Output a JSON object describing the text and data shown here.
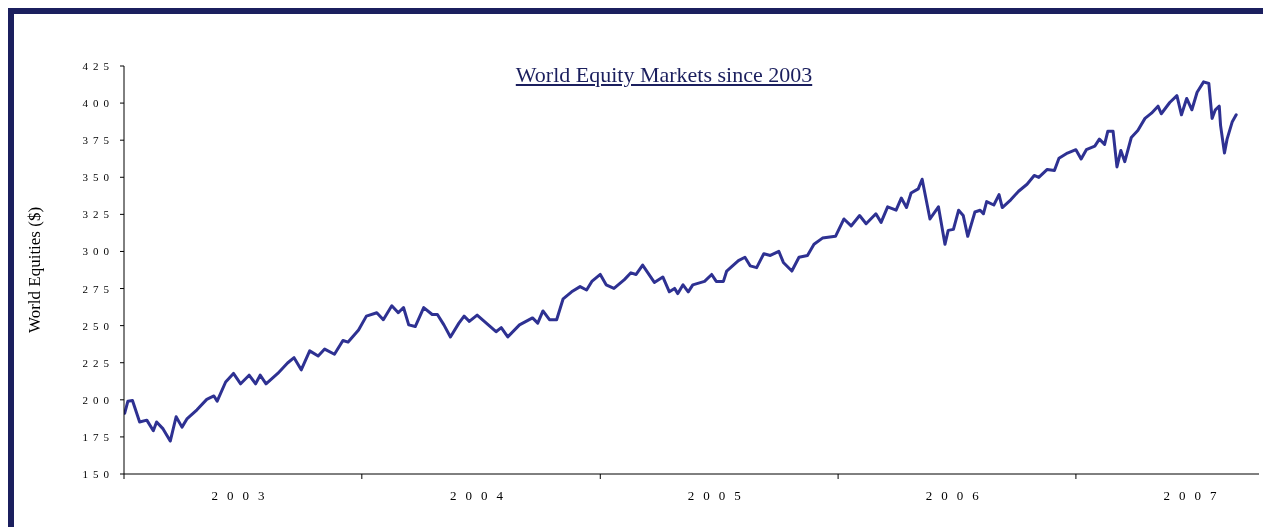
{
  "chart_data": {
    "type": "line",
    "title": "World Equity Markets since 2003",
    "ylabel": "World Equities ($)",
    "xlim": [
      "2003-01-01",
      "2007-10-09"
    ],
    "xticks": [
      {
        "value": "2003-01-01",
        "label": null
      },
      {
        "value": "2003-07-02",
        "label": "2003"
      },
      {
        "value": "2004-01-01",
        "label": null
      },
      {
        "value": "2004-07-02",
        "label": "2004"
      },
      {
        "value": "2005-01-01",
        "label": null
      },
      {
        "value": "2005-07-02",
        "label": "2005"
      },
      {
        "value": "2006-01-01",
        "label": null
      },
      {
        "value": "2006-07-02",
        "label": "2006"
      },
      {
        "value": "2007-01-01",
        "label": null
      },
      {
        "value": "2007-07-02",
        "label": "2007"
      }
    ],
    "ylim": [
      150,
      425
    ],
    "yticks": [
      150,
      175,
      200,
      225,
      250,
      275,
      300,
      325,
      350,
      375,
      400,
      425
    ],
    "line_style": "solid",
    "series": [
      {
        "color": "#2e3192",
        "x": [
          "2003-01-02",
          "2003-01-07",
          "2003-01-14",
          "2003-01-25",
          "2003-02-05",
          "2003-02-15",
          "2003-02-20",
          "2003-03-02",
          "2003-03-13",
          "2003-03-22",
          "2003-03-31",
          "2003-04-08",
          "2003-04-23",
          "2003-05-08",
          "2003-05-19",
          "2003-05-24",
          "2003-06-06",
          "2003-06-18",
          "2003-06-29",
          "2003-07-12",
          "2003-07-22",
          "2003-07-29",
          "2003-08-07",
          "2003-08-25",
          "2003-09-09",
          "2003-09-19",
          "2003-09-30",
          "2003-10-13",
          "2003-10-26",
          "2003-11-05",
          "2003-11-20",
          "2003-12-03",
          "2003-12-11",
          "2003-12-27",
          "2004-01-08",
          "2004-01-24",
          "2004-02-03",
          "2004-02-16",
          "2004-02-26",
          "2004-03-05",
          "2004-03-13",
          "2004-03-23",
          "2004-04-05",
          "2004-04-18",
          "2004-04-26",
          "2004-05-06",
          "2004-05-16",
          "2004-05-29",
          "2004-06-06",
          "2004-06-14",
          "2004-06-26",
          "2004-07-07",
          "2004-07-25",
          "2004-08-02",
          "2004-08-12",
          "2004-08-30",
          "2004-09-19",
          "2004-09-27",
          "2004-10-05",
          "2004-10-15",
          "2004-10-26",
          "2004-11-05",
          "2004-11-18",
          "2004-12-01",
          "2004-12-11",
          "2004-12-19",
          "2005-01-01",
          "2005-01-10",
          "2005-01-22",
          "2005-02-07",
          "2005-02-17",
          "2005-02-25",
          "2005-03-07",
          "2005-03-25",
          "2005-04-07",
          "2005-04-17",
          "2005-04-25",
          "2005-04-30",
          "2005-05-08",
          "2005-05-16",
          "2005-05-23",
          "2005-06-10",
          "2005-06-21",
          "2005-06-28",
          "2005-07-09",
          "2005-07-14",
          "2005-08-01",
          "2005-08-11",
          "2005-08-19",
          "2005-08-29",
          "2005-09-09",
          "2005-09-19",
          "2005-10-02",
          "2005-10-09",
          "2005-10-22",
          "2005-11-02",
          "2005-11-15",
          "2005-11-25",
          "2005-12-08",
          "2005-12-28",
          "2006-01-10",
          "2006-01-21",
          "2006-02-03",
          "2006-02-13",
          "2006-02-28",
          "2006-03-08",
          "2006-03-18",
          "2006-03-31",
          "2006-04-08",
          "2006-04-16",
          "2006-04-23",
          "2006-05-04",
          "2006-05-10",
          "2006-05-22",
          "2006-06-04",
          "2006-06-14",
          "2006-06-19",
          "2006-06-27",
          "2006-07-05",
          "2006-07-12",
          "2006-07-19",
          "2006-07-30",
          "2006-08-07",
          "2006-08-12",
          "2006-08-17",
          "2006-08-28",
          "2006-09-05",
          "2006-09-10",
          "2006-09-23",
          "2006-10-05",
          "2006-10-18",
          "2006-10-29",
          "2006-11-05",
          "2006-11-18",
          "2006-11-29",
          "2006-12-06",
          "2006-12-19",
          "2007-01-01",
          "2007-01-09",
          "2007-01-17",
          "2007-01-30",
          "2007-02-06",
          "2007-02-14",
          "2007-02-19",
          "2007-02-27",
          "2007-03-05",
          "2007-03-11",
          "2007-03-17",
          "2007-03-27",
          "2007-04-06",
          "2007-04-17",
          "2007-04-27",
          "2007-05-07",
          "2007-05-12",
          "2007-05-25",
          "2007-06-05",
          "2007-06-12",
          "2007-06-20",
          "2007-06-28",
          "2007-07-06",
          "2007-07-16",
          "2007-07-24",
          "2007-07-29",
          "2007-08-03",
          "2007-08-09",
          "2007-08-11",
          "2007-08-17",
          "2007-08-21",
          "2007-08-29",
          "2007-09-04"
        ],
        "values": [
          190.9,
          199.1,
          199.6,
          185.1,
          186.3,
          179.2,
          185.1,
          180.4,
          172.2,
          188.6,
          181.6,
          187.4,
          193.3,
          200.3,
          202.6,
          199.1,
          212.0,
          217.8,
          210.8,
          216.6,
          210.8,
          216.6,
          210.8,
          217.8,
          224.8,
          228.4,
          220.2,
          233.0,
          229.5,
          234.2,
          230.7,
          240.0,
          238.9,
          247.0,
          256.4,
          258.7,
          254.0,
          263.4,
          258.7,
          262.2,
          250.5,
          249.4,
          262.2,
          257.5,
          257.5,
          250.5,
          242.4,
          251.7,
          256.4,
          252.9,
          257.1,
          252.9,
          245.9,
          248.7,
          242.4,
          250.5,
          255.2,
          251.7,
          259.9,
          254.0,
          254.0,
          268.1,
          272.8,
          276.3,
          274.0,
          279.8,
          284.5,
          277.5,
          275.1,
          281.0,
          285.6,
          284.5,
          290.8,
          279.1,
          282.8,
          272.8,
          275.1,
          271.6,
          277.5,
          272.8,
          277.5,
          279.8,
          284.5,
          279.8,
          279.8,
          286.8,
          293.8,
          296.1,
          290.3,
          289.1,
          298.5,
          297.3,
          300.1,
          292.6,
          286.8,
          296.1,
          297.3,
          304.8,
          309.0,
          310.2,
          321.9,
          317.2,
          324.2,
          318.7,
          325.4,
          319.6,
          330.1,
          327.8,
          336.0,
          329.6,
          339.4,
          342.2,
          348.7,
          321.9,
          330.1,
          304.8,
          314.2,
          314.9,
          327.8,
          324.3,
          310.2,
          326.6,
          327.8,
          325.4,
          333.6,
          331.3,
          338.3,
          329.6,
          334.8,
          340.6,
          345.3,
          351.2,
          349.9,
          355.3,
          354.6,
          362.8,
          366.3,
          368.6,
          362.3,
          368.6,
          371.0,
          375.7,
          372.2,
          381.1,
          381.1,
          357.0,
          368.1,
          360.5,
          376.8,
          381.5,
          389.7,
          393.2,
          397.9,
          392.8,
          400.4,
          405.0,
          392.1,
          403.1,
          395.5,
          407.3,
          414.3,
          413.2,
          389.7,
          395.5,
          397.9,
          385.0,
          366.3,
          375.7,
          387.5,
          392.1
        ]
      }
    ]
  }
}
